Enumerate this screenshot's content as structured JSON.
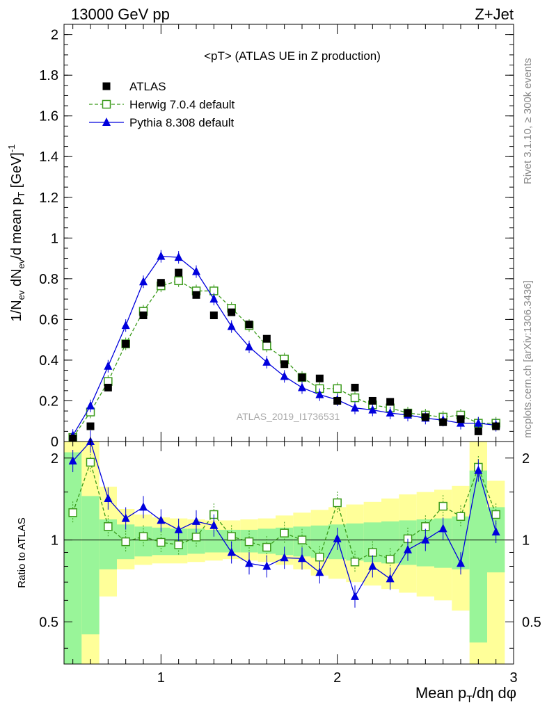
{
  "header": {
    "left": "13000 GeV pp",
    "right": "Z+Jet"
  },
  "side_labels": {
    "rivet": "Rivet 3.1.10, ≥ 300k events",
    "mcplots": "mcplots.cern.ch [arXiv:1306.3436]"
  },
  "chart_data": [
    {
      "type": "scatter",
      "title": "<pT> (ATLAS UE in Z production)",
      "watermark": "ATLAS_2019_I1736531",
      "ylabel": "1/N_ev dN_ev/d mean p_T [GeV]^-1",
      "xlim": [
        0.45,
        3.0
      ],
      "ylim": [
        0,
        2.05
      ],
      "yticks": [
        0,
        0.2,
        0.4,
        0.6,
        0.8,
        1,
        1.2,
        1.4,
        1.6,
        1.8,
        2
      ],
      "ytick_labels": [
        "0",
        "0.2",
        "0.4",
        "0.6",
        "0.8",
        "1",
        "1.2",
        "1.4",
        "1.6",
        "1.8",
        "2"
      ],
      "legend": {
        "placement": "top-left",
        "entries": [
          "ATLAS",
          "Herwig 7.0.4 default",
          "Pythia 8.308 default"
        ]
      },
      "x": [
        0.5,
        0.6,
        0.7,
        0.8,
        0.9,
        1.0,
        1.1,
        1.2,
        1.3,
        1.4,
        1.5,
        1.6,
        1.7,
        1.8,
        1.9,
        2.0,
        2.1,
        2.2,
        2.3,
        2.4,
        2.5,
        2.6,
        2.7,
        2.8,
        2.9
      ],
      "series": [
        {
          "name": "ATLAS",
          "color": "#000000",
          "marker": "square-filled",
          "values": [
            0.015,
            0.075,
            0.265,
            0.48,
            0.62,
            0.78,
            0.83,
            0.72,
            0.62,
            0.635,
            0.575,
            0.505,
            0.38,
            0.315,
            0.31,
            0.2,
            0.265,
            0.2,
            0.195,
            0.14,
            0.12,
            0.095,
            0.11,
            0.05,
            0.075
          ]
        },
        {
          "name": "Herwig 7.0.4 default",
          "color": "#3a9a1a",
          "marker": "square-open",
          "line": "dashed",
          "values": [
            0.02,
            0.145,
            0.295,
            0.48,
            0.64,
            0.765,
            0.79,
            0.74,
            0.74,
            0.655,
            0.57,
            0.47,
            0.405,
            0.315,
            0.26,
            0.26,
            0.215,
            0.18,
            0.165,
            0.14,
            0.13,
            0.12,
            0.13,
            0.09,
            0.09
          ]
        },
        {
          "name": "Pythia 8.308 default",
          "color": "#0000dd",
          "marker": "triangle-filled",
          "line": "solid",
          "values": [
            0.03,
            0.175,
            0.37,
            0.57,
            0.785,
            0.91,
            0.905,
            0.835,
            0.7,
            0.565,
            0.465,
            0.39,
            0.32,
            0.265,
            0.23,
            0.205,
            0.165,
            0.155,
            0.14,
            0.13,
            0.115,
            0.105,
            0.09,
            0.09,
            0.08
          ]
        }
      ]
    },
    {
      "type": "scatter",
      "ylabel": "Ratio to ATLAS",
      "xlabel": "Mean p_T/dη dφ",
      "yscale": "log",
      "xlim": [
        0.45,
        3.0
      ],
      "ylim": [
        0.35,
        2.3
      ],
      "xticks": [
        1,
        2,
        3
      ],
      "xtick_labels": [
        "1",
        "2",
        "3"
      ],
      "yticks": [
        0.5,
        1,
        2
      ],
      "ytick_labels": [
        "0.5",
        "1",
        "2"
      ],
      "reference_line": 1,
      "bin_edges": [
        0.45,
        0.55,
        0.65,
        0.75,
        0.85,
        0.95,
        1.05,
        1.15,
        1.25,
        1.35,
        1.45,
        1.55,
        1.65,
        1.75,
        1.85,
        1.95,
        2.05,
        2.15,
        2.25,
        2.35,
        2.45,
        2.55,
        2.65,
        2.75,
        2.85,
        2.95
      ],
      "uncertainty_bands": {
        "inner_color": "#99f599",
        "outer_color": "#ffff99",
        "inner_low": [
          0.35,
          0.45,
          0.78,
          0.85,
          0.87,
          0.88,
          0.88,
          0.89,
          0.9,
          0.9,
          0.9,
          0.89,
          0.88,
          0.87,
          0.86,
          0.85,
          0.84,
          0.83,
          0.82,
          0.81,
          0.8,
          0.79,
          0.78,
          0.42,
          0.76
        ],
        "inner_high": [
          2.1,
          1.45,
          1.19,
          1.14,
          1.12,
          1.11,
          1.1,
          1.1,
          1.09,
          1.09,
          1.09,
          1.1,
          1.11,
          1.12,
          1.13,
          1.14,
          1.15,
          1.16,
          1.17,
          1.18,
          1.19,
          1.2,
          1.22,
          1.8,
          1.32
        ],
        "outer_low": [
          0.35,
          0.35,
          0.62,
          0.78,
          0.81,
          0.82,
          0.82,
          0.83,
          0.84,
          0.85,
          0.84,
          0.83,
          0.81,
          0.78,
          0.74,
          0.72,
          0.7,
          0.68,
          0.66,
          0.64,
          0.62,
          0.6,
          0.55,
          0.35,
          0.35
        ],
        "outer_high": [
          2.3,
          2.3,
          1.57,
          1.3,
          1.24,
          1.21,
          1.2,
          1.19,
          1.18,
          1.18,
          1.19,
          1.2,
          1.23,
          1.26,
          1.29,
          1.32,
          1.35,
          1.38,
          1.42,
          1.47,
          1.5,
          1.53,
          1.58,
          2.3,
          1.65
        ]
      },
      "series": [
        {
          "name": "Herwig 7.0.4 default",
          "color": "#3a9a1a",
          "marker": "square-open",
          "line": "dashed",
          "values": [
            1.26,
            1.93,
            1.12,
            0.985,
            1.03,
            0.98,
            0.96,
            1.025,
            1.24,
            1.03,
            0.985,
            0.94,
            1.06,
            1.0,
            0.865,
            1.37,
            0.83,
            0.9,
            0.85,
            1.01,
            1.12,
            1.33,
            1.22,
            1.85,
            1.24
          ]
        },
        {
          "name": "Pythia 8.308 default",
          "color": "#0000dd",
          "marker": "triangle-filled",
          "line": "solid",
          "values": [
            1.95,
            2.35,
            1.42,
            1.2,
            1.32,
            1.18,
            1.09,
            1.17,
            1.13,
            0.9,
            0.82,
            0.8,
            0.86,
            0.855,
            0.76,
            1.01,
            0.62,
            0.8,
            0.72,
            0.92,
            1.0,
            1.1,
            0.82,
            1.8,
            1.07
          ]
        }
      ]
    }
  ]
}
